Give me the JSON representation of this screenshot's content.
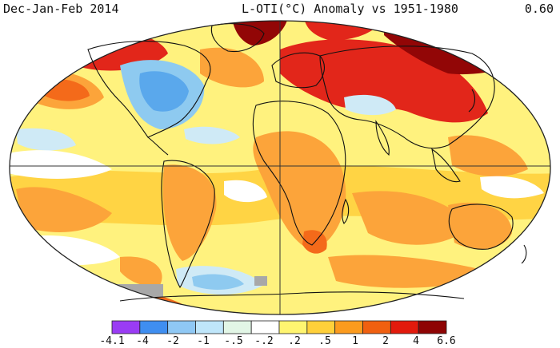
{
  "header": {
    "season": "Dec-Jan-Feb 2014",
    "title": "L-OTI(°C) Anomaly vs 1951-1980",
    "global_mean": "0.60"
  },
  "legend": {
    "breaks": [
      "-4.1",
      "-4",
      "-2",
      "-1",
      "-.5",
      "-.2",
      ".2",
      ".5",
      "1",
      "2",
      "4",
      "6.6"
    ],
    "colors": [
      "#9a3cf4",
      "#3f8ef0",
      "#8fc8f4",
      "#bfe6fa",
      "#e2f6e6",
      "#ffffff",
      "#fff570",
      "#ffd03a",
      "#fb9b1e",
      "#f06010",
      "#e21a0c",
      "#8e0404"
    ]
  },
  "map": {
    "projection": "Robinson",
    "colors": {
      "ocean_base": "#fff27e",
      "warm_light": "#ffd444",
      "warm": "#fca43a",
      "warm_strong": "#f46a1a",
      "hot": "#e2261a",
      "very_hot": "#920606",
      "cold_light": "#cfeaf6",
      "cold": "#8ecaf0",
      "cold_strong": "#5aa8ec",
      "neutral": "#ffffff",
      "no_data": "#a8a8a8",
      "coastline": "#111111"
    }
  }
}
